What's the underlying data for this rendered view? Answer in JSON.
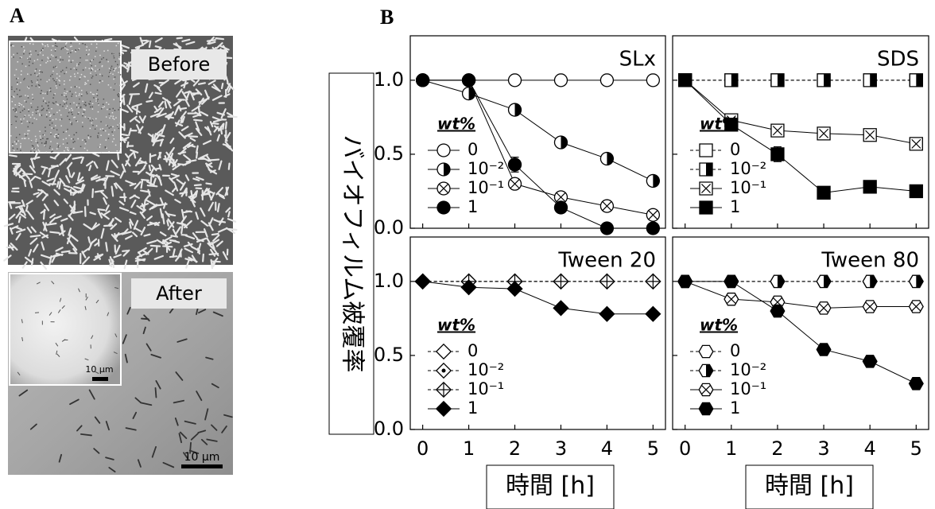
{
  "panel_a": {
    "label": "A",
    "before": {
      "label": "Before"
    },
    "after": {
      "label": "After",
      "inset_scale": "10 μm",
      "scale": "10 μm"
    }
  },
  "panel_b": {
    "label": "B",
    "y_label": "バイオフィルム被覆率",
    "x_labels": [
      "時間 [h]",
      "時間 [h]"
    ]
  },
  "chart_data": [
    {
      "type": "line",
      "title": "SLx",
      "legend_title": "wt%",
      "x": [
        0,
        1,
        2,
        3,
        4,
        5
      ],
      "xlim": [
        -0.27,
        5.27
      ],
      "xticks": [
        0,
        1,
        2,
        3,
        4,
        5
      ],
      "x_tick_labels": false,
      "ylim": [
        0,
        1.3
      ],
      "yticks": [
        {
          "value": 0,
          "label": "0.0"
        },
        {
          "value": 0.5,
          "label": "0.5"
        },
        {
          "value": 1,
          "label": "1.0"
        }
      ],
      "series": [
        {
          "name": "0",
          "color": "#000000",
          "marker": "circle",
          "fill": "none",
          "dashed": false,
          "values": [
            1,
            1,
            1,
            1,
            1,
            1
          ]
        },
        {
          "name": "10⁻²",
          "color": "#000000",
          "marker": "circle",
          "fill": "half",
          "dashed": false,
          "values": [
            1,
            0.91,
            0.8,
            0.58,
            0.47,
            0.32
          ]
        },
        {
          "name": "10⁻¹",
          "color": "#000000",
          "marker": "circle",
          "fill": "cross",
          "dashed": false,
          "values": [
            1,
            1,
            0.3,
            0.21,
            0.15,
            0.09
          ]
        },
        {
          "name": "1",
          "color": "#000000",
          "marker": "circle",
          "fill": "full",
          "dashed": false,
          "values": [
            1,
            1,
            0.43,
            0.14,
            0,
            0
          ],
          "errors": [
            null,
            null,
            0.05,
            null,
            null,
            null
          ]
        }
      ]
    },
    {
      "type": "line",
      "title": "SDS",
      "legend_title": "wt%",
      "x": [
        0,
        1,
        2,
        3,
        4,
        5
      ],
      "xlim": [
        -0.27,
        5.27
      ],
      "xticks": [
        0,
        1,
        2,
        3,
        4,
        5
      ],
      "x_tick_labels": false,
      "ylim": [
        0,
        1.3
      ],
      "yticks": [
        0,
        0.5,
        1
      ],
      "series": [
        {
          "name": "0",
          "color": "#000000",
          "marker": "square",
          "fill": "none",
          "dashed": true,
          "values": [
            1,
            1,
            1,
            1,
            1,
            1
          ]
        },
        {
          "name": "10⁻²",
          "color": "#000000",
          "marker": "square",
          "fill": "half",
          "dashed": true,
          "values": [
            1,
            1,
            1,
            1,
            1,
            1
          ]
        },
        {
          "name": "10⁻¹",
          "color": "#000000",
          "marker": "square",
          "fill": "cross",
          "dashed": false,
          "values": [
            1,
            0.73,
            0.66,
            0.64,
            0.63,
            0.57
          ]
        },
        {
          "name": "1",
          "color": "#000000",
          "marker": "square",
          "fill": "full",
          "dashed": false,
          "values": [
            1,
            0.7,
            0.5,
            0.24,
            0.28,
            0.25
          ],
          "errors": [
            null,
            null,
            0.05,
            null,
            null,
            null
          ]
        }
      ]
    },
    {
      "type": "line",
      "title": "Tween 20",
      "legend_title": "wt%",
      "x": [
        0,
        1,
        2,
        3,
        4,
        5
      ],
      "xlim": [
        -0.27,
        5.27
      ],
      "xticks": [
        0,
        1,
        2,
        3,
        4,
        5
      ],
      "x_tick_labels": true,
      "ylim": [
        0,
        1.3
      ],
      "yticks": [
        {
          "value": 0,
          "label": "0.0"
        },
        {
          "value": 0.5,
          "label": "0.5"
        },
        {
          "value": 1,
          "label": "1.0"
        }
      ],
      "series": [
        {
          "name": "0",
          "color": "#000000",
          "marker": "diamond",
          "fill": "none",
          "dashed": true,
          "values": [
            1,
            1,
            1,
            1,
            1,
            1
          ]
        },
        {
          "name": "10⁻²",
          "color": "#000000",
          "marker": "diamond",
          "fill": "dot",
          "dashed": true,
          "values": [
            1,
            1,
            1,
            1,
            1,
            1
          ]
        },
        {
          "name": "10⁻¹",
          "color": "#000000",
          "marker": "diamond",
          "fill": "plus",
          "dashed": true,
          "values": [
            1,
            1,
            1,
            1,
            1,
            1
          ]
        },
        {
          "name": "1",
          "color": "#000000",
          "marker": "diamond",
          "fill": "full",
          "dashed": false,
          "values": [
            1,
            0.96,
            0.95,
            0.82,
            0.78,
            0.78
          ]
        }
      ]
    },
    {
      "type": "line",
      "title": "Tween 80",
      "legend_title": "wt%",
      "x": [
        0,
        1,
        2,
        3,
        4,
        5
      ],
      "xlim": [
        -0.27,
        5.27
      ],
      "xticks": [
        0,
        1,
        2,
        3,
        4,
        5
      ],
      "x_tick_labels": true,
      "ylim": [
        0,
        1.3
      ],
      "yticks": [
        0,
        0.5,
        1
      ],
      "series": [
        {
          "name": "0",
          "color": "#000000",
          "marker": "hexagon",
          "fill": "none",
          "dashed": true,
          "values": [
            1,
            1,
            1,
            1,
            1,
            1
          ]
        },
        {
          "name": "10⁻²",
          "color": "#000000",
          "marker": "hexagon",
          "fill": "half",
          "dashed": true,
          "values": [
            1,
            1,
            1,
            1,
            1,
            1
          ]
        },
        {
          "name": "10⁻¹",
          "color": "#000000",
          "marker": "hexagon",
          "fill": "cross",
          "dashed": false,
          "values": [
            1,
            0.88,
            0.86,
            0.82,
            0.83,
            0.83
          ]
        },
        {
          "name": "1",
          "color": "#000000",
          "marker": "hexagon",
          "fill": "full",
          "dashed": false,
          "values": [
            1,
            1,
            0.8,
            0.54,
            0.46,
            0.31
          ]
        }
      ]
    }
  ]
}
